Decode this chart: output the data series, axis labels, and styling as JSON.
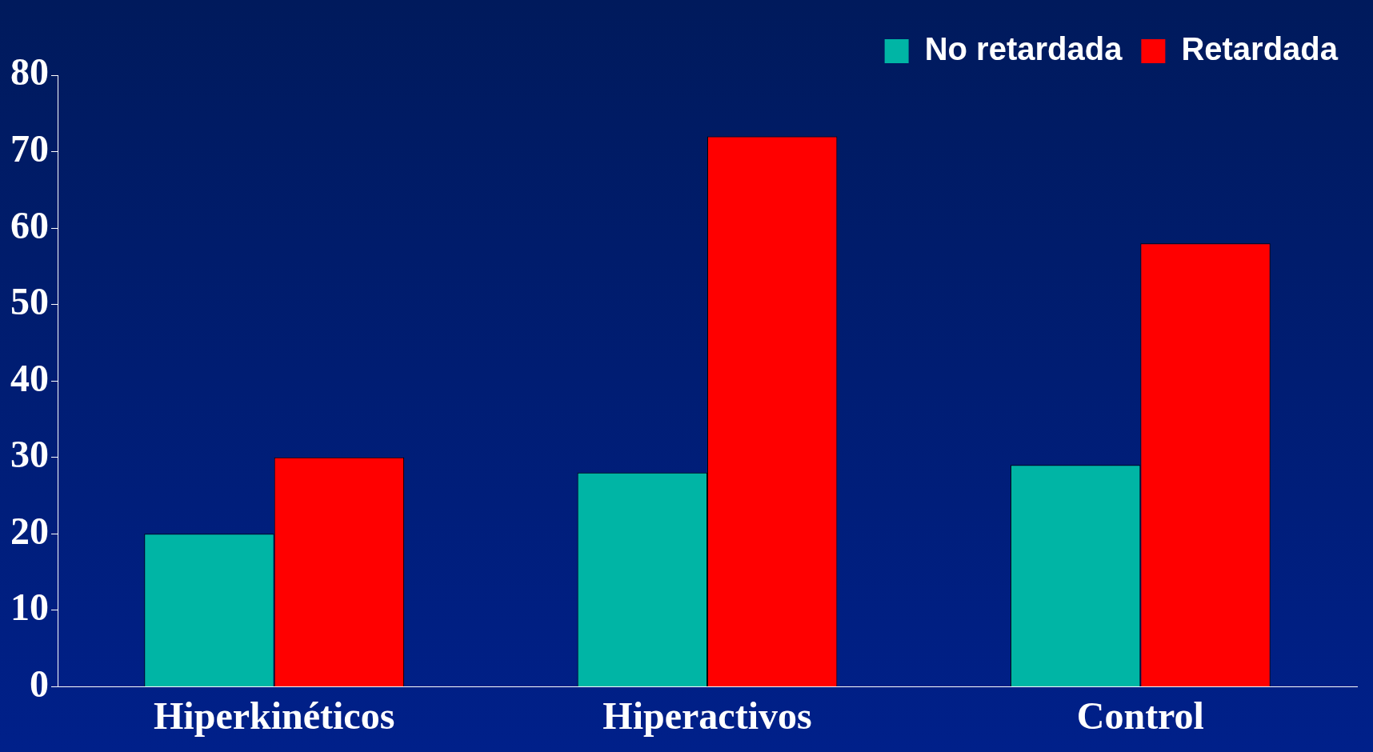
{
  "chart_data": {
    "type": "bar",
    "categories": [
      "Hiperkinéticos",
      "Hiperactivos",
      "Control"
    ],
    "series": [
      {
        "name": "No retardada",
        "color": "#00b5a5",
        "values": [
          20,
          28,
          29
        ]
      },
      {
        "name": "Retardada",
        "color": "#ff0000",
        "values": [
          30,
          72,
          58
        ]
      }
    ],
    "ylim": [
      0,
      80
    ],
    "yticks": [
      0,
      10,
      20,
      30,
      40,
      50,
      60,
      70,
      80
    ],
    "grid": false,
    "legend": "top right"
  }
}
